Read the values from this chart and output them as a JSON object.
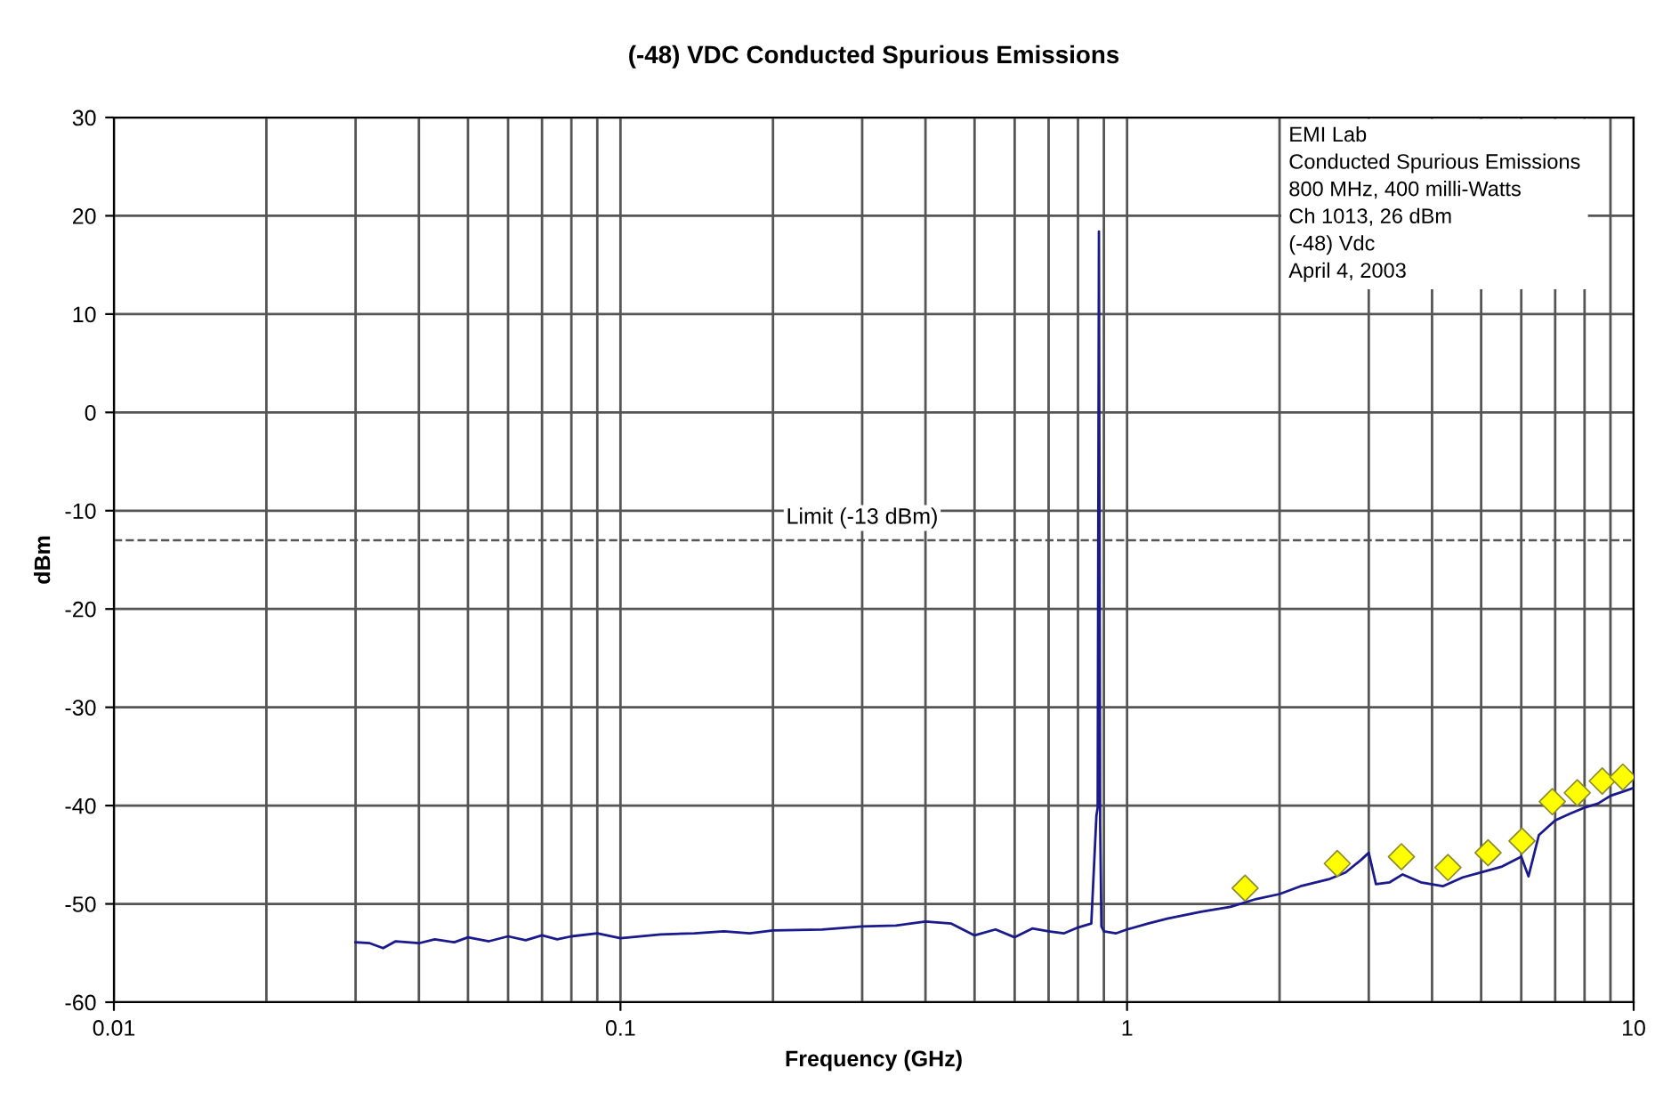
{
  "chart_data": {
    "type": "line",
    "title": "(-48) VDC Conducted Spurious Emissions",
    "xlabel": "Frequency (GHz)",
    "ylabel": "dBm",
    "log": "x",
    "xlim": [
      0.01,
      10
    ],
    "xticks": [
      0.01,
      0.1,
      1,
      10
    ],
    "ylim": [
      -60,
      30
    ],
    "yticks": [
      -60,
      -50,
      -40,
      -30,
      -20,
      -10,
      0,
      10,
      20,
      30
    ],
    "grid": true,
    "legend": false,
    "series": [
      {
        "color": "#1a1a8c",
        "marker": "none",
        "x": [
          0.03,
          0.032,
          0.034,
          0.036,
          0.04,
          0.043,
          0.047,
          0.05,
          0.055,
          0.06,
          0.065,
          0.07,
          0.075,
          0.08,
          0.09,
          0.1,
          0.12,
          0.14,
          0.16,
          0.18,
          0.2,
          0.25,
          0.3,
          0.35,
          0.4,
          0.45,
          0.5,
          0.55,
          0.6,
          0.65,
          0.7,
          0.75,
          0.8,
          0.85,
          0.87,
          0.875,
          0.88,
          0.885,
          0.89,
          0.9,
          0.95,
          1.0,
          1.1,
          1.2,
          1.4,
          1.6,
          1.8,
          2.0,
          2.2,
          2.5,
          2.7,
          2.9,
          3.0,
          3.1,
          3.3,
          3.5,
          3.8,
          4.2,
          4.6,
          5.0,
          5.5,
          6.0,
          6.2,
          6.5,
          7.0,
          7.5,
          8.0,
          8.5,
          9.0,
          9.5,
          10.0
        ],
        "values": [
          -53.9,
          -54.0,
          -54.5,
          -53.8,
          -54.0,
          -53.6,
          -53.9,
          -53.4,
          -53.8,
          -53.3,
          -53.7,
          -53.2,
          -53.6,
          -53.3,
          -53.0,
          -53.5,
          -53.1,
          -53.0,
          -52.8,
          -53.0,
          -52.7,
          -52.6,
          -52.3,
          -52.2,
          -51.8,
          -52.0,
          -53.2,
          -52.6,
          -53.4,
          -52.5,
          -52.8,
          -53.0,
          -52.4,
          -52.0,
          -41.0,
          -40.2,
          18.4,
          -42.0,
          -52.3,
          -52.8,
          -53.0,
          -52.6,
          -52.0,
          -51.5,
          -50.8,
          -50.3,
          -49.5,
          -49.0,
          -48.2,
          -47.5,
          -46.8,
          -45.5,
          -44.8,
          -48.0,
          -47.8,
          -47.0,
          -47.8,
          -48.2,
          -47.3,
          -46.8,
          -46.2,
          -45.2,
          -47.2,
          -43.0,
          -41.5,
          -40.8,
          -40.2,
          -39.8,
          -39.0,
          -38.6,
          -38.2
        ]
      },
      {
        "type": "scatter",
        "color": "#ffff00",
        "marker": "diamond",
        "x": [
          1.71,
          2.6,
          3.48,
          4.3,
          5.16,
          6.02,
          6.91,
          7.74,
          8.67,
          9.52
        ],
        "values": [
          -48.4,
          -45.9,
          -45.2,
          -46.3,
          -44.8,
          -43.6,
          -39.6,
          -38.7,
          -37.5,
          -37.1
        ]
      }
    ],
    "ref_lines": [
      {
        "axis": "y",
        "value": -13,
        "label": "Limit (-13 dBm)",
        "color": "#555555",
        "line_style": "dashed"
      }
    ],
    "annotations": [
      "EMI Lab",
      "Conducted Spurious Emissions",
      "800 MHz, 400 milli-Watts",
      "Ch 1013, 26 dBm",
      "(-48) Vdc",
      "April 4, 2003"
    ]
  }
}
